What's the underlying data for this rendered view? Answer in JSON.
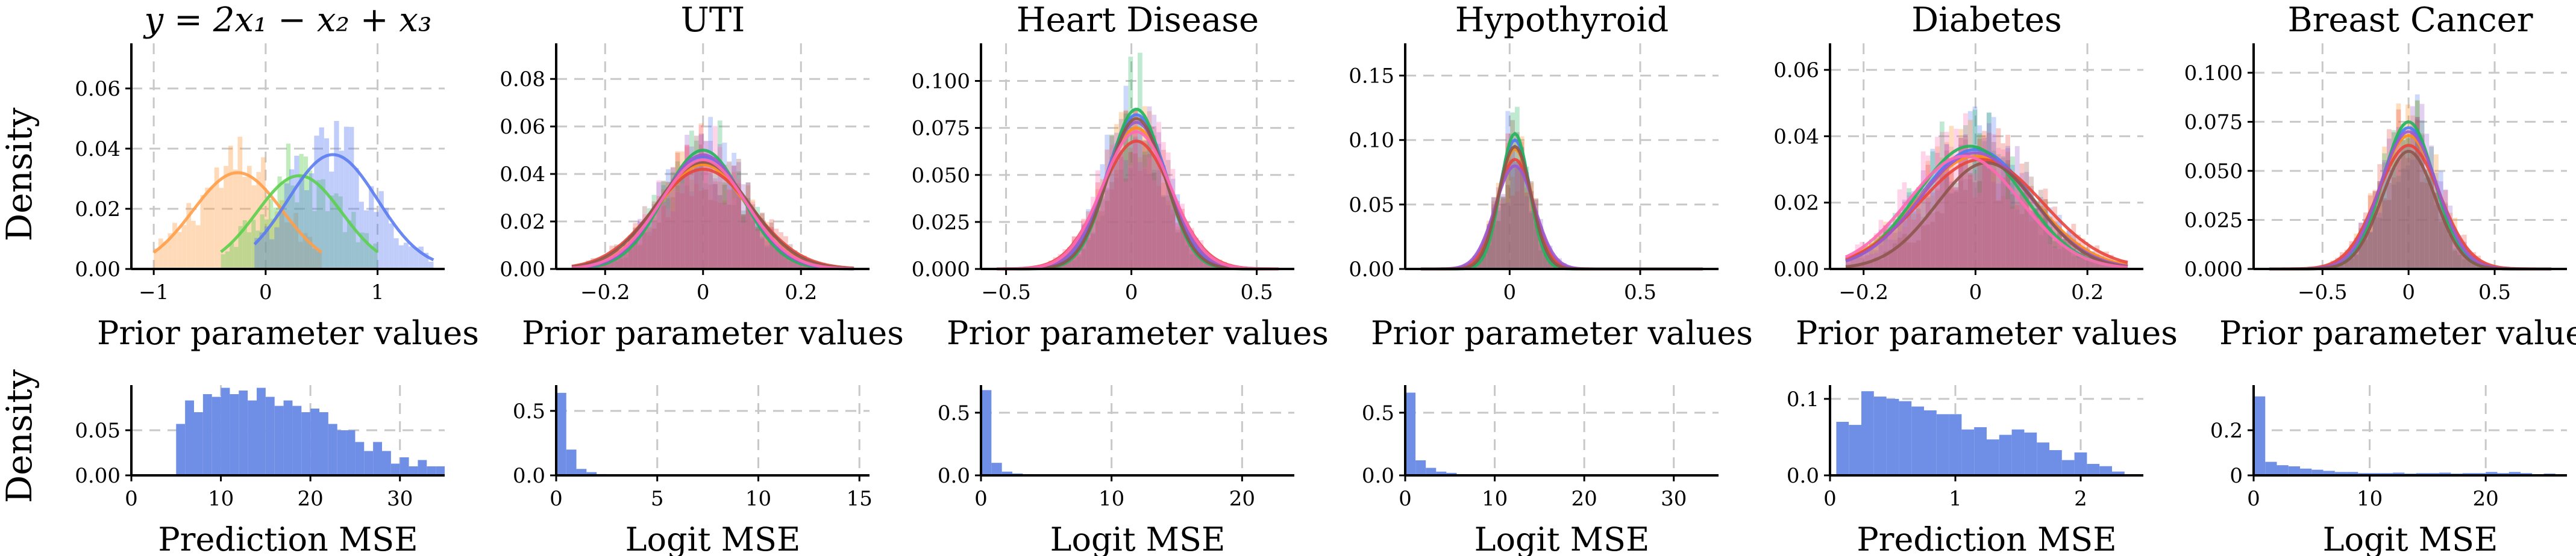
{
  "figure_ylabel_top": "Density",
  "figure_ylabel_bottom": "Density",
  "colors": {
    "palette": [
      "#4e79f5",
      "#ff8c1a",
      "#22b45c",
      "#e8453c",
      "#9b59d0",
      "#8c564b",
      "#ff69b4",
      "#7f7f7f",
      "#bcbd22",
      "#17becf"
    ],
    "synthetic": [
      "#ff9f4a",
      "#5ccf4e",
      "#5b7cf0"
    ],
    "mse_bar": "#6f8fe6",
    "grid": "#c8c8c8"
  },
  "chart_data": [
    {
      "type": "area",
      "title": "y = 2x₁ − x₂ + x₃",
      "xlabel": "Prior parameter values",
      "ylabel": "Density",
      "xlim": [
        -1.2,
        1.6
      ],
      "ylim": [
        0,
        0.075
      ],
      "xticks": [
        -1,
        0,
        1
      ],
      "yticks": [
        0,
        0.02,
        0.04,
        0.06
      ],
      "ytick_labels": [
        "0.00",
        "0.02",
        "0.04",
        "0.06"
      ],
      "grid": true,
      "series": [
        {
          "mean": -0.25,
          "sd": 0.4,
          "peak": 0.032,
          "range": [
            -1.0,
            0.5
          ]
        },
        {
          "mean": 0.3,
          "sd": 0.38,
          "peak": 0.031,
          "range": [
            -0.4,
            1.0
          ]
        },
        {
          "mean": 0.6,
          "sd": 0.4,
          "peak": 0.038,
          "range": [
            -0.1,
            1.5
          ]
        }
      ]
    },
    {
      "type": "area",
      "title": "UTI",
      "xlabel": "Prior parameter values",
      "xlim": [
        -0.3,
        0.34
      ],
      "ylim": [
        0,
        0.095
      ],
      "xticks": [
        -0.2,
        0,
        0.2
      ],
      "yticks": [
        0,
        0.02,
        0.04,
        0.06,
        0.08
      ],
      "ytick_labels": [
        "0.00",
        "0.02",
        "0.04",
        "0.06",
        "0.08"
      ],
      "grid": true,
      "series": [
        {
          "mean": 0.0,
          "sd": 0.085,
          "peak": 0.047
        },
        {
          "mean": 0.0,
          "sd": 0.09,
          "peak": 0.044
        },
        {
          "mean": 0.0,
          "sd": 0.08,
          "peak": 0.05
        },
        {
          "mean": 0.0,
          "sd": 0.1,
          "peak": 0.042
        },
        {
          "mean": 0.0,
          "sd": 0.085,
          "peak": 0.048
        },
        {
          "mean": 0.0,
          "sd": 0.095,
          "peak": 0.045
        },
        {
          "mean": 0.0,
          "sd": 0.088,
          "peak": 0.046
        }
      ]
    },
    {
      "type": "area",
      "title": "Heart Disease",
      "xlabel": "Prior parameter values",
      "xlim": [
        -0.6,
        0.65
      ],
      "ylim": [
        0,
        0.12
      ],
      "xticks": [
        -0.5,
        0,
        0.5
      ],
      "yticks": [
        0,
        0.025,
        0.05,
        0.075,
        0.1
      ],
      "ytick_labels": [
        "0.000",
        "0.025",
        "0.050",
        "0.075",
        "0.100"
      ],
      "grid": true,
      "series": [
        {
          "mean": 0.02,
          "sd": 0.12,
          "peak": 0.082
        },
        {
          "mean": 0.02,
          "sd": 0.13,
          "peak": 0.075
        },
        {
          "mean": 0.02,
          "sd": 0.11,
          "peak": 0.085
        },
        {
          "mean": 0.02,
          "sd": 0.14,
          "peak": 0.068
        },
        {
          "mean": 0.02,
          "sd": 0.125,
          "peak": 0.078
        },
        {
          "mean": 0.02,
          "sd": 0.115,
          "peak": 0.08
        },
        {
          "mean": 0.02,
          "sd": 0.135,
          "peak": 0.073
        }
      ]
    },
    {
      "type": "area",
      "title": "Hypothyroid",
      "xlabel": "Prior parameter values",
      "xlim": [
        -0.4,
        0.8
      ],
      "ylim": [
        0,
        0.175
      ],
      "xticks": [
        0,
        0.5
      ],
      "yticks": [
        0,
        0.05,
        0.1,
        0.15
      ],
      "ytick_labels": [
        "0.00",
        "0.05",
        "0.10",
        "0.15"
      ],
      "grid": true,
      "series": [
        {
          "mean": 0.02,
          "sd": 0.06,
          "peak": 0.1
        },
        {
          "mean": 0.02,
          "sd": 0.065,
          "peak": 0.093
        },
        {
          "mean": 0.02,
          "sd": 0.055,
          "peak": 0.105
        },
        {
          "mean": 0.02,
          "sd": 0.07,
          "peak": 0.085
        },
        {
          "mean": 0.02,
          "sd": 0.075,
          "peak": 0.08
        },
        {
          "mean": 0.02,
          "sd": 0.062,
          "peak": 0.095
        }
      ]
    },
    {
      "type": "area",
      "title": "Diabetes",
      "xlabel": "Prior parameter values",
      "xlim": [
        -0.26,
        0.3
      ],
      "ylim": [
        0,
        0.068
      ],
      "xticks": [
        -0.2,
        0,
        0.2
      ],
      "yticks": [
        0,
        0.02,
        0.04,
        0.06
      ],
      "ytick_labels": [
        "0.00",
        "0.02",
        "0.04",
        "0.06"
      ],
      "grid": true,
      "series": [
        {
          "mean": 0.0,
          "sd": 0.1,
          "peak": 0.036
        },
        {
          "mean": 0.0,
          "sd": 0.105,
          "peak": 0.034
        },
        {
          "mean": -0.01,
          "sd": 0.095,
          "peak": 0.037
        },
        {
          "mean": 0.01,
          "sd": 0.11,
          "peak": 0.033
        },
        {
          "mean": 0.0,
          "sd": 0.1,
          "peak": 0.035
        },
        {
          "mean": 0.02,
          "sd": 0.09,
          "peak": 0.032
        },
        {
          "mean": -0.02,
          "sd": 0.1,
          "peak": 0.034
        }
      ]
    },
    {
      "type": "area",
      "title": "Breast Cancer",
      "xlabel": "Prior parameter values",
      "xlim": [
        -0.9,
        0.92
      ],
      "ylim": [
        0,
        0.115
      ],
      "xticks": [
        -0.5,
        0,
        0.5
      ],
      "yticks": [
        0,
        0.025,
        0.05,
        0.075,
        0.1
      ],
      "ytick_labels": [
        "0.000",
        "0.025",
        "0.050",
        "0.075",
        "0.100"
      ],
      "grid": true,
      "series": [
        {
          "mean": 0.0,
          "sd": 0.16,
          "peak": 0.072
        },
        {
          "mean": 0.0,
          "sd": 0.17,
          "peak": 0.068
        },
        {
          "mean": 0.0,
          "sd": 0.15,
          "peak": 0.075
        },
        {
          "mean": 0.0,
          "sd": 0.18,
          "peak": 0.063
        },
        {
          "mean": 0.0,
          "sd": 0.165,
          "peak": 0.07
        },
        {
          "mean": 0.0,
          "sd": 0.155,
          "peak": 0.06
        }
      ]
    },
    {
      "type": "bar",
      "xlabel": "Prediction MSE",
      "ylabel": "Density",
      "xlim": [
        0,
        35
      ],
      "ylim": [
        0,
        0.1
      ],
      "xticks": [
        0,
        10,
        20,
        30
      ],
      "yticks": [
        0,
        0.05
      ],
      "ytick_labels": [
        "0.00",
        "0.05"
      ],
      "grid": true,
      "bin_start": 5,
      "bin_width": 1,
      "values": [
        0.057,
        0.083,
        0.07,
        0.09,
        0.087,
        0.097,
        0.09,
        0.094,
        0.083,
        0.097,
        0.087,
        0.077,
        0.083,
        0.077,
        0.07,
        0.074,
        0.07,
        0.057,
        0.05,
        0.05,
        0.037,
        0.027,
        0.037,
        0.027,
        0.013,
        0.02,
        0.01,
        0.017,
        0.01,
        0.01
      ]
    },
    {
      "type": "bar",
      "xlabel": "Logit MSE",
      "xlim": [
        0,
        15.5
      ],
      "ylim": [
        0,
        0.7
      ],
      "xticks": [
        0,
        5,
        10,
        15
      ],
      "yticks": [
        0,
        0.5
      ],
      "ytick_labels": [
        "0.0",
        "0.5"
      ],
      "grid": true,
      "bin_start": 0,
      "bin_width": 0.5,
      "values": [
        0.64,
        0.2,
        0.05,
        0.025,
        0.01,
        0.006,
        0.004,
        0.003,
        0.002,
        0.002,
        0.001,
        0.001,
        0.0,
        0.001,
        0.0,
        0.0,
        0.0,
        0.0,
        0.0,
        0.0,
        0.0,
        0.0,
        0.0,
        0.0,
        0.0,
        0.0,
        0.0,
        0.0,
        0.0,
        0.001
      ]
    },
    {
      "type": "bar",
      "xlabel": "Logit MSE",
      "xlim": [
        0,
        24
      ],
      "ylim": [
        0,
        0.72
      ],
      "xticks": [
        0,
        10,
        20
      ],
      "yticks": [
        0,
        0.5
      ],
      "ytick_labels": [
        "0.0",
        "0.5"
      ],
      "grid": true,
      "bin_start": 0,
      "bin_width": 0.8,
      "values": [
        0.68,
        0.1,
        0.03,
        0.015,
        0.01,
        0.008,
        0.006,
        0.004,
        0.003,
        0.003,
        0.002,
        0.002,
        0.001,
        0.002,
        0.001,
        0.001,
        0.001,
        0.0,
        0.001,
        0.0,
        0.0,
        0.001,
        0.0,
        0.0,
        0.0,
        0.0,
        0.0,
        0.0,
        0.0
      ]
    },
    {
      "type": "bar",
      "xlabel": "Logit MSE",
      "xlim": [
        0,
        35
      ],
      "ylim": [
        0,
        0.72
      ],
      "xticks": [
        0,
        10,
        20,
        30
      ],
      "yticks": [
        0,
        0.5
      ],
      "ytick_labels": [
        "0.0",
        "0.5"
      ],
      "grid": true,
      "bin_start": 0,
      "bin_width": 1.15,
      "values": [
        0.66,
        0.12,
        0.06,
        0.03,
        0.02,
        0.01,
        0.008,
        0.006,
        0.005,
        0.004,
        0.003,
        0.003,
        0.002,
        0.002,
        0.002,
        0.001,
        0.001,
        0.001,
        0.001,
        0.001,
        0.0,
        0.0,
        0.0,
        0.001,
        0.0,
        0.001,
        0.0,
        0.0,
        0.0,
        0.0
      ]
    },
    {
      "type": "bar",
      "xlabel": "Prediction MSE",
      "xlim": [
        0,
        2.5
      ],
      "ylim": [
        0,
        0.118
      ],
      "xticks": [
        0,
        1,
        2
      ],
      "yticks": [
        0,
        0.1
      ],
      "ytick_labels": [
        "0.0",
        "0.1"
      ],
      "grid": true,
      "bin_start": 0.05,
      "bin_width": 0.1,
      "values": [
        0.07,
        0.066,
        0.11,
        0.103,
        0.1,
        0.097,
        0.09,
        0.085,
        0.08,
        0.08,
        0.06,
        0.063,
        0.047,
        0.053,
        0.06,
        0.056,
        0.043,
        0.033,
        0.02,
        0.03,
        0.015,
        0.012,
        0.005
      ]
    },
    {
      "type": "bar",
      "xlabel": "Logit MSE",
      "xlim": [
        0,
        27
      ],
      "ylim": [
        0,
        0.4
      ],
      "xticks": [
        0,
        10,
        20
      ],
      "yticks": [
        0,
        0.2
      ],
      "ytick_labels": [
        "0",
        "0.2"
      ],
      "grid": true,
      "bin_start": 0,
      "bin_width": 1,
      "values": [
        0.35,
        0.06,
        0.045,
        0.04,
        0.03,
        0.025,
        0.02,
        0.015,
        0.015,
        0.01,
        0.01,
        0.01,
        0.012,
        0.008,
        0.01,
        0.01,
        0.012,
        0.008,
        0.01,
        0.01,
        0.015,
        0.01,
        0.015,
        0.01,
        0.005,
        0.008
      ]
    }
  ]
}
